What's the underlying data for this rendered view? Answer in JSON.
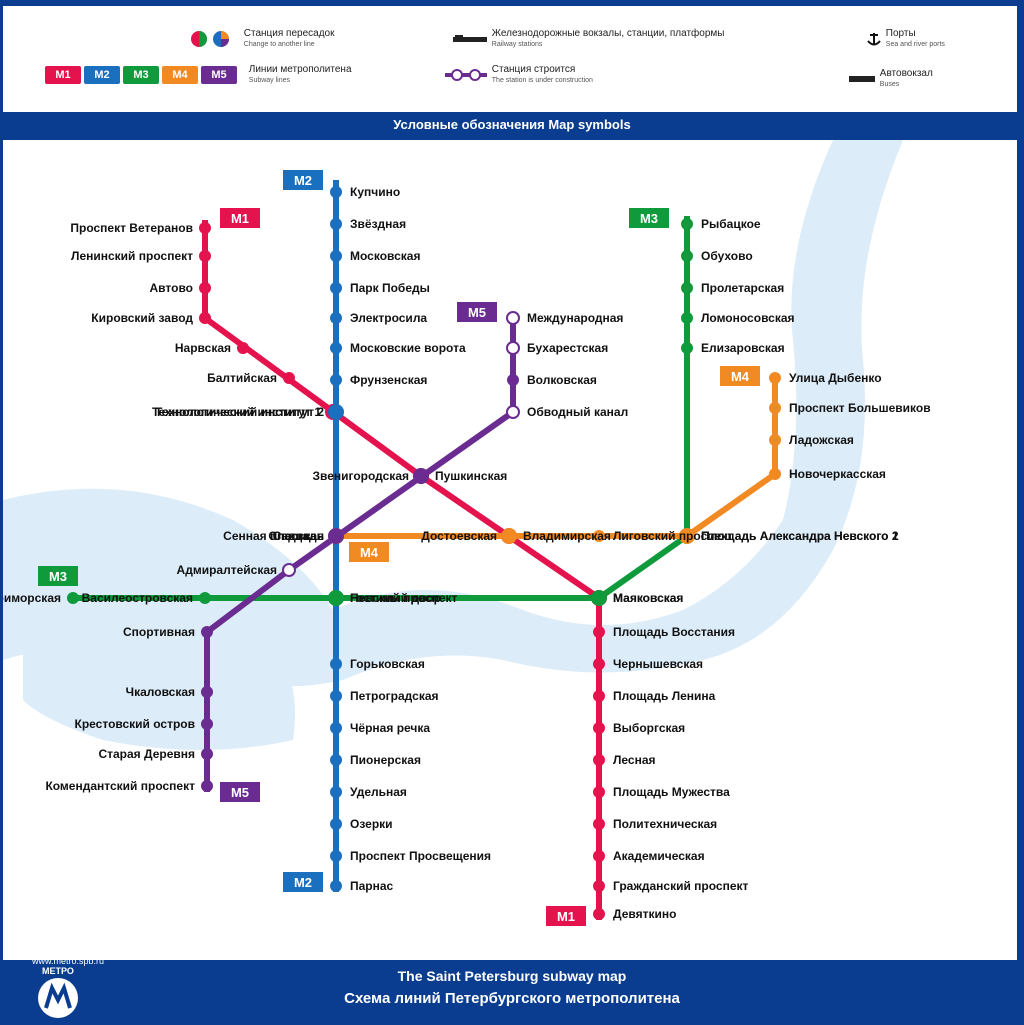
{
  "legend": {
    "title": "Условные обозначения     Map symbols",
    "items": {
      "transfer": {
        "label": "Станция пересадок",
        "sub": "Change to another line"
      },
      "lines": {
        "label": "Линии метрополитена",
        "sub": "Subway lines"
      },
      "rail": {
        "label": "Железнодорожные вокзалы, станции, платформы",
        "sub": "Railway stations"
      },
      "construction": {
        "label": "Станция строится",
        "sub": "The station is under construction"
      },
      "port": {
        "label": "Порты",
        "sub": "Sea and river ports"
      },
      "bus": {
        "label": "Автовокзал",
        "sub": "Buses"
      }
    },
    "line_chips": [
      "M1",
      "M2",
      "M3",
      "M4",
      "M5"
    ]
  },
  "lines": {
    "m1": {
      "label": "M1",
      "color": "#e4124d"
    },
    "m2": {
      "label": "M2",
      "color": "#1b6fbf"
    },
    "m3": {
      "label": "M3",
      "color": "#0f9b3c"
    },
    "m4": {
      "label": "M4",
      "color": "#f28a24"
    },
    "m5": {
      "label": "M5",
      "color": "#6a2c91"
    }
  },
  "colors": {
    "water": "#dcecf8",
    "frame": "#0a3d8f"
  },
  "stations": {
    "m1": [
      "Проспект Ветеранов",
      "Ленинский проспект",
      "Автово",
      "Кировский завод",
      "Нарвская",
      "Балтийская",
      "Технологический институт 1",
      "Пушкинская",
      "Владимирская",
      "Маяковская",
      "Площадь Восстания",
      "Чернышевская",
      "Площадь Ленина",
      "Выборгская",
      "Лесная",
      "Площадь Мужества",
      "Политехническая",
      "Академическая",
      "Гражданский проспект",
      "Девяткино"
    ],
    "m2": [
      "Купчино",
      "Звёздная",
      "Московская",
      "Парк Победы",
      "Электросила",
      "Московские ворота",
      "Фрунзенская",
      "Технологический институт 2",
      "Сенная площадь",
      "Невский проспект",
      "Горьковская",
      "Петроградская",
      "Чёрная речка",
      "Пионерская",
      "Удельная",
      "Озерки",
      "Проспект Просвещения",
      "Парнас"
    ],
    "m3": [
      "Рыбацкое",
      "Обухово",
      "Пролетарская",
      "Ломоносовская",
      "Елизаровская",
      "Площадь Александра Невского 1",
      "Маяковская",
      "Гостиный двор",
      "Василеостровская",
      "Приморская"
    ],
    "m4": [
      "Улица Дыбенко",
      "Проспект Большевиков",
      "Ладожская",
      "Новочеркасская",
      "Площадь Александра Невского 2",
      "Лиговский проспект",
      "Достоевская",
      "Спасская"
    ],
    "m5": [
      "Международная",
      "Бухарестская",
      "Волковская",
      "Обводный канал",
      "Звенигородская",
      "Садовая",
      "Адмиралтейская",
      "Спортивная",
      "Чкаловская",
      "Крестовский остров",
      "Старая Деревня",
      "Комендантский проспект"
    ]
  },
  "footer": {
    "title_ru": "Схема линий Петербургского метрополитена",
    "title_en": "The Saint Petersburg subway map",
    "site": "www.metro.spb.ru",
    "logo_text": "МЕТРО"
  }
}
